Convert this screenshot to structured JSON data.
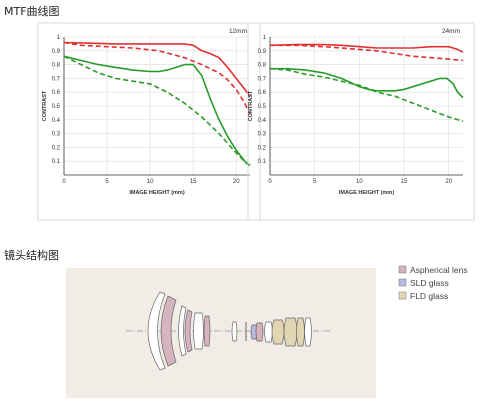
{
  "titles": {
    "mtf": "MTF曲线图",
    "lens": "镜头结构图"
  },
  "colors": {
    "red": "#e23030",
    "green": "#2a9a2a",
    "aspherical": "#d6b4bf",
    "sld": "#b7b8dd",
    "fld": "#e2d6b2",
    "lens_panel_bg": "#f1ece6"
  },
  "chart_data": [
    {
      "type": "line",
      "title": "12mm",
      "xlabel": "IMAGE HEIGHT (mm)",
      "ylabel": "CONTRAST",
      "xlim": [
        0,
        21.6
      ],
      "ylim": [
        0,
        1
      ],
      "xticks": [
        0,
        5,
        10,
        15,
        20
      ],
      "yticks": [
        0.1,
        0.2,
        0.3,
        0.4,
        0.5,
        0.6,
        0.7,
        0.8,
        0.9,
        1
      ],
      "grid": true,
      "series": [
        {
          "color": "red",
          "dash": false,
          "x": [
            0,
            3,
            6,
            9,
            12,
            14,
            15,
            16,
            17,
            18,
            19,
            20,
            21,
            21.6
          ],
          "y": [
            0.96,
            0.955,
            0.95,
            0.95,
            0.95,
            0.95,
            0.94,
            0.9,
            0.88,
            0.85,
            0.78,
            0.7,
            0.62,
            0.57
          ]
        },
        {
          "color": "red",
          "dash": true,
          "x": [
            0,
            2,
            5,
            8,
            11,
            14,
            16,
            18,
            19,
            20,
            21,
            21.6
          ],
          "y": [
            0.96,
            0.94,
            0.93,
            0.92,
            0.9,
            0.85,
            0.8,
            0.74,
            0.69,
            0.62,
            0.52,
            0.44
          ]
        },
        {
          "color": "green",
          "dash": false,
          "x": [
            0,
            2,
            4,
            6,
            8,
            10,
            11,
            12,
            13,
            14,
            15,
            16,
            17,
            18,
            19,
            20,
            21,
            21.6
          ],
          "y": [
            0.86,
            0.83,
            0.8,
            0.78,
            0.76,
            0.75,
            0.75,
            0.76,
            0.78,
            0.8,
            0.8,
            0.72,
            0.55,
            0.4,
            0.28,
            0.18,
            0.1,
            0.07
          ]
        },
        {
          "color": "green",
          "dash": true,
          "x": [
            0,
            2,
            4,
            6,
            8,
            10,
            12,
            14,
            16,
            18,
            20,
            21.6
          ],
          "y": [
            0.86,
            0.8,
            0.74,
            0.7,
            0.68,
            0.66,
            0.6,
            0.52,
            0.42,
            0.3,
            0.16,
            0.06
          ]
        }
      ]
    },
    {
      "type": "line",
      "title": "24mm",
      "xlabel": "IMAGE HEIGHT (mm)",
      "ylabel": "CONTRAST",
      "xlim": [
        0,
        21.6
      ],
      "ylim": [
        0,
        1
      ],
      "xticks": [
        0,
        5,
        10,
        15,
        20
      ],
      "yticks": [
        0.1,
        0.2,
        0.3,
        0.4,
        0.5,
        0.6,
        0.7,
        0.8,
        0.9,
        1
      ],
      "grid": true,
      "series": [
        {
          "color": "red",
          "dash": false,
          "x": [
            0,
            3,
            6,
            8,
            10,
            12,
            14,
            16,
            18,
            19,
            20,
            21,
            21.6
          ],
          "y": [
            0.94,
            0.945,
            0.945,
            0.94,
            0.93,
            0.92,
            0.92,
            0.92,
            0.93,
            0.93,
            0.93,
            0.91,
            0.89
          ]
        },
        {
          "color": "red",
          "dash": true,
          "x": [
            0,
            3,
            6,
            8,
            10,
            12,
            14,
            16,
            18,
            20,
            21.6
          ],
          "y": [
            0.94,
            0.94,
            0.93,
            0.92,
            0.91,
            0.9,
            0.88,
            0.86,
            0.85,
            0.84,
            0.83
          ]
        },
        {
          "color": "green",
          "dash": false,
          "x": [
            0,
            2,
            4,
            6,
            7,
            8,
            9,
            10,
            11,
            12,
            13,
            14,
            15,
            16,
            17,
            18,
            19,
            19.8,
            20.5,
            21,
            21.6
          ],
          "y": [
            0.77,
            0.77,
            0.76,
            0.74,
            0.72,
            0.7,
            0.67,
            0.64,
            0.62,
            0.61,
            0.61,
            0.61,
            0.62,
            0.64,
            0.66,
            0.68,
            0.7,
            0.7,
            0.66,
            0.6,
            0.56
          ]
        },
        {
          "color": "green",
          "dash": true,
          "x": [
            0,
            2,
            4,
            6,
            8,
            10,
            12,
            14,
            16,
            18,
            20,
            21.6
          ],
          "y": [
            0.77,
            0.76,
            0.73,
            0.71,
            0.68,
            0.65,
            0.6,
            0.57,
            0.52,
            0.47,
            0.42,
            0.39
          ]
        }
      ]
    }
  ],
  "legend": [
    {
      "label": "Aspherical lens",
      "color": "aspherical"
    },
    {
      "label": "SLD glass",
      "color": "sld"
    },
    {
      "label": "FLD glass",
      "color": "fld"
    }
  ]
}
